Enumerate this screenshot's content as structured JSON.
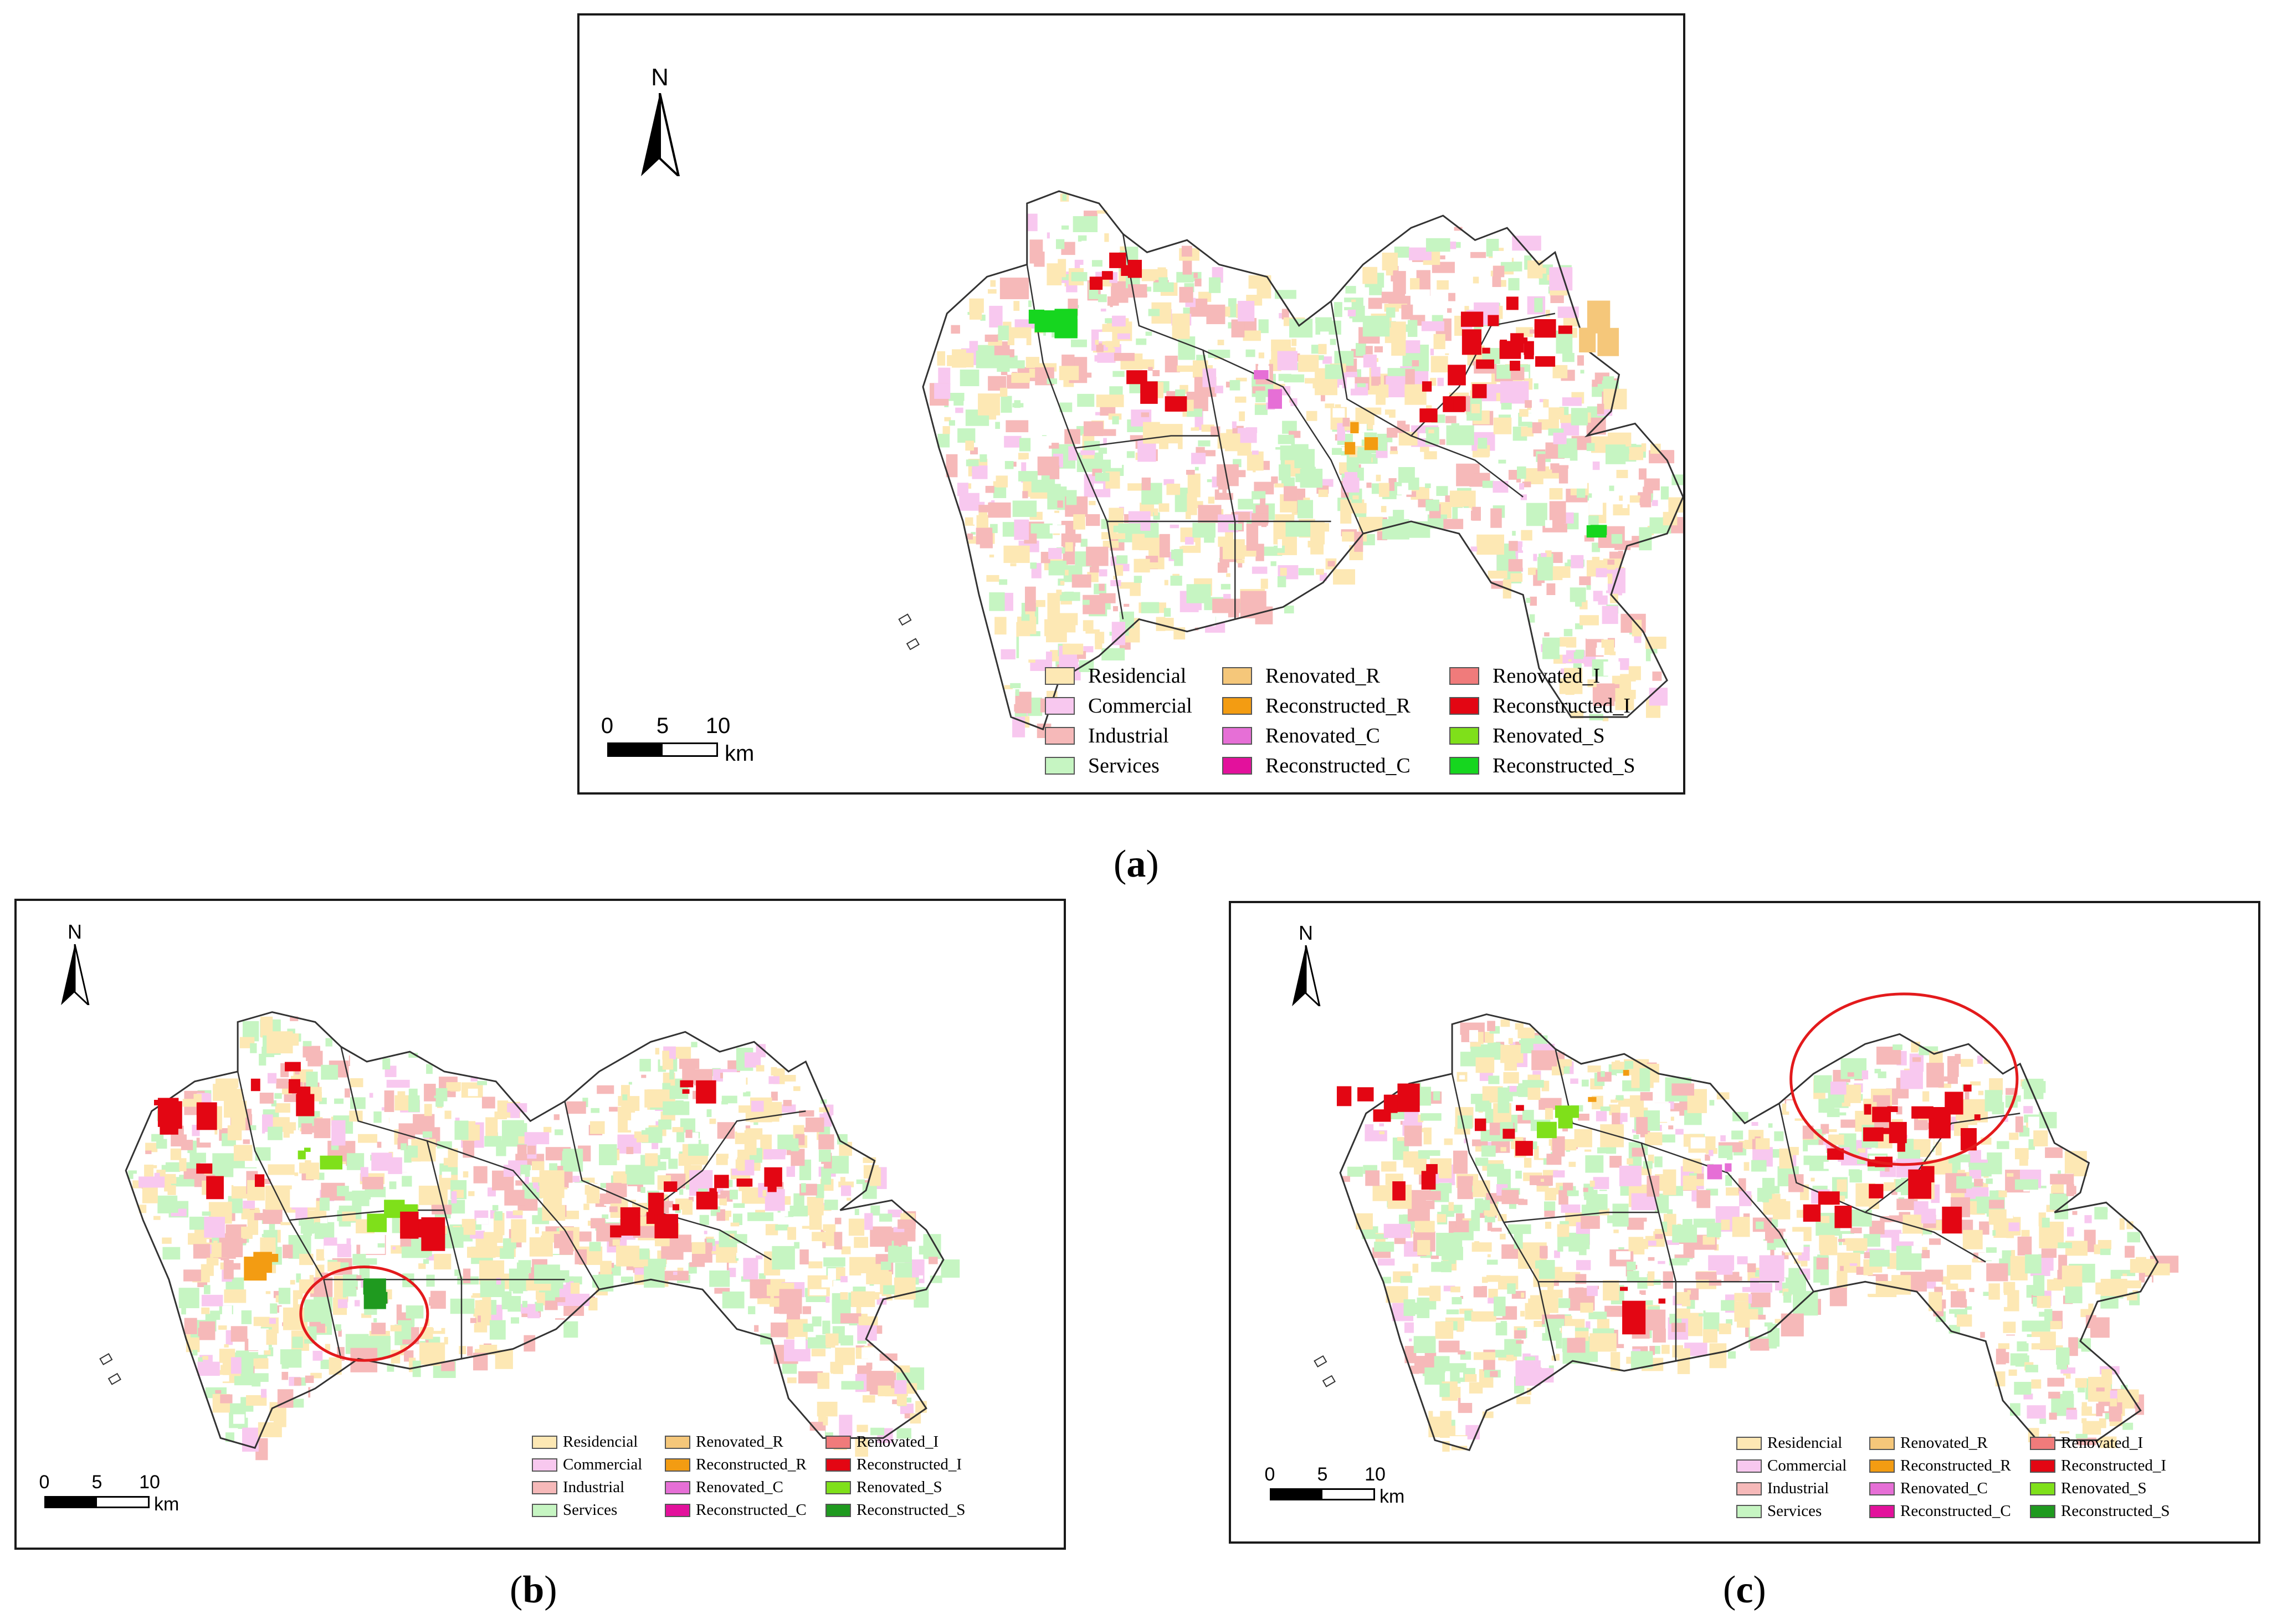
{
  "north_label": "N",
  "scale": {
    "ticks": [
      "0",
      "5",
      "10"
    ],
    "unit": "km"
  },
  "legend": [
    {
      "label": "Residencial",
      "color": "#fde8b4"
    },
    {
      "label": "Commercial",
      "color": "#f8c8ef"
    },
    {
      "label": "Industrial",
      "color": "#f6b9b9"
    },
    {
      "label": "Services",
      "color": "#c6f5c2"
    },
    {
      "label": "Renovated_R",
      "color": "#f5c77a"
    },
    {
      "label": "Reconstructed_R",
      "color": "#f39c12"
    },
    {
      "label": "Renovated_C",
      "color": "#e66fd6"
    },
    {
      "label": "Reconstructed_C",
      "color": "#e3119c"
    },
    {
      "label": "Renovated_I",
      "color": "#f07b7b"
    },
    {
      "label": "Reconstructed_I",
      "color": "#e30613"
    },
    {
      "label": "Renovated_S",
      "color": "#7fe01a"
    },
    {
      "label_a": "Reconstructed_S",
      "label": "Reconstructed_S",
      "color": "#16d61f",
      "color_bc": "#1f9a1f"
    }
  ],
  "panels": [
    {
      "id": "a",
      "caption_letter": "a"
    },
    {
      "id": "b",
      "caption_letter": "b"
    },
    {
      "id": "c",
      "caption_letter": "c"
    }
  ],
  "highlight_color": "#e31a1c"
}
